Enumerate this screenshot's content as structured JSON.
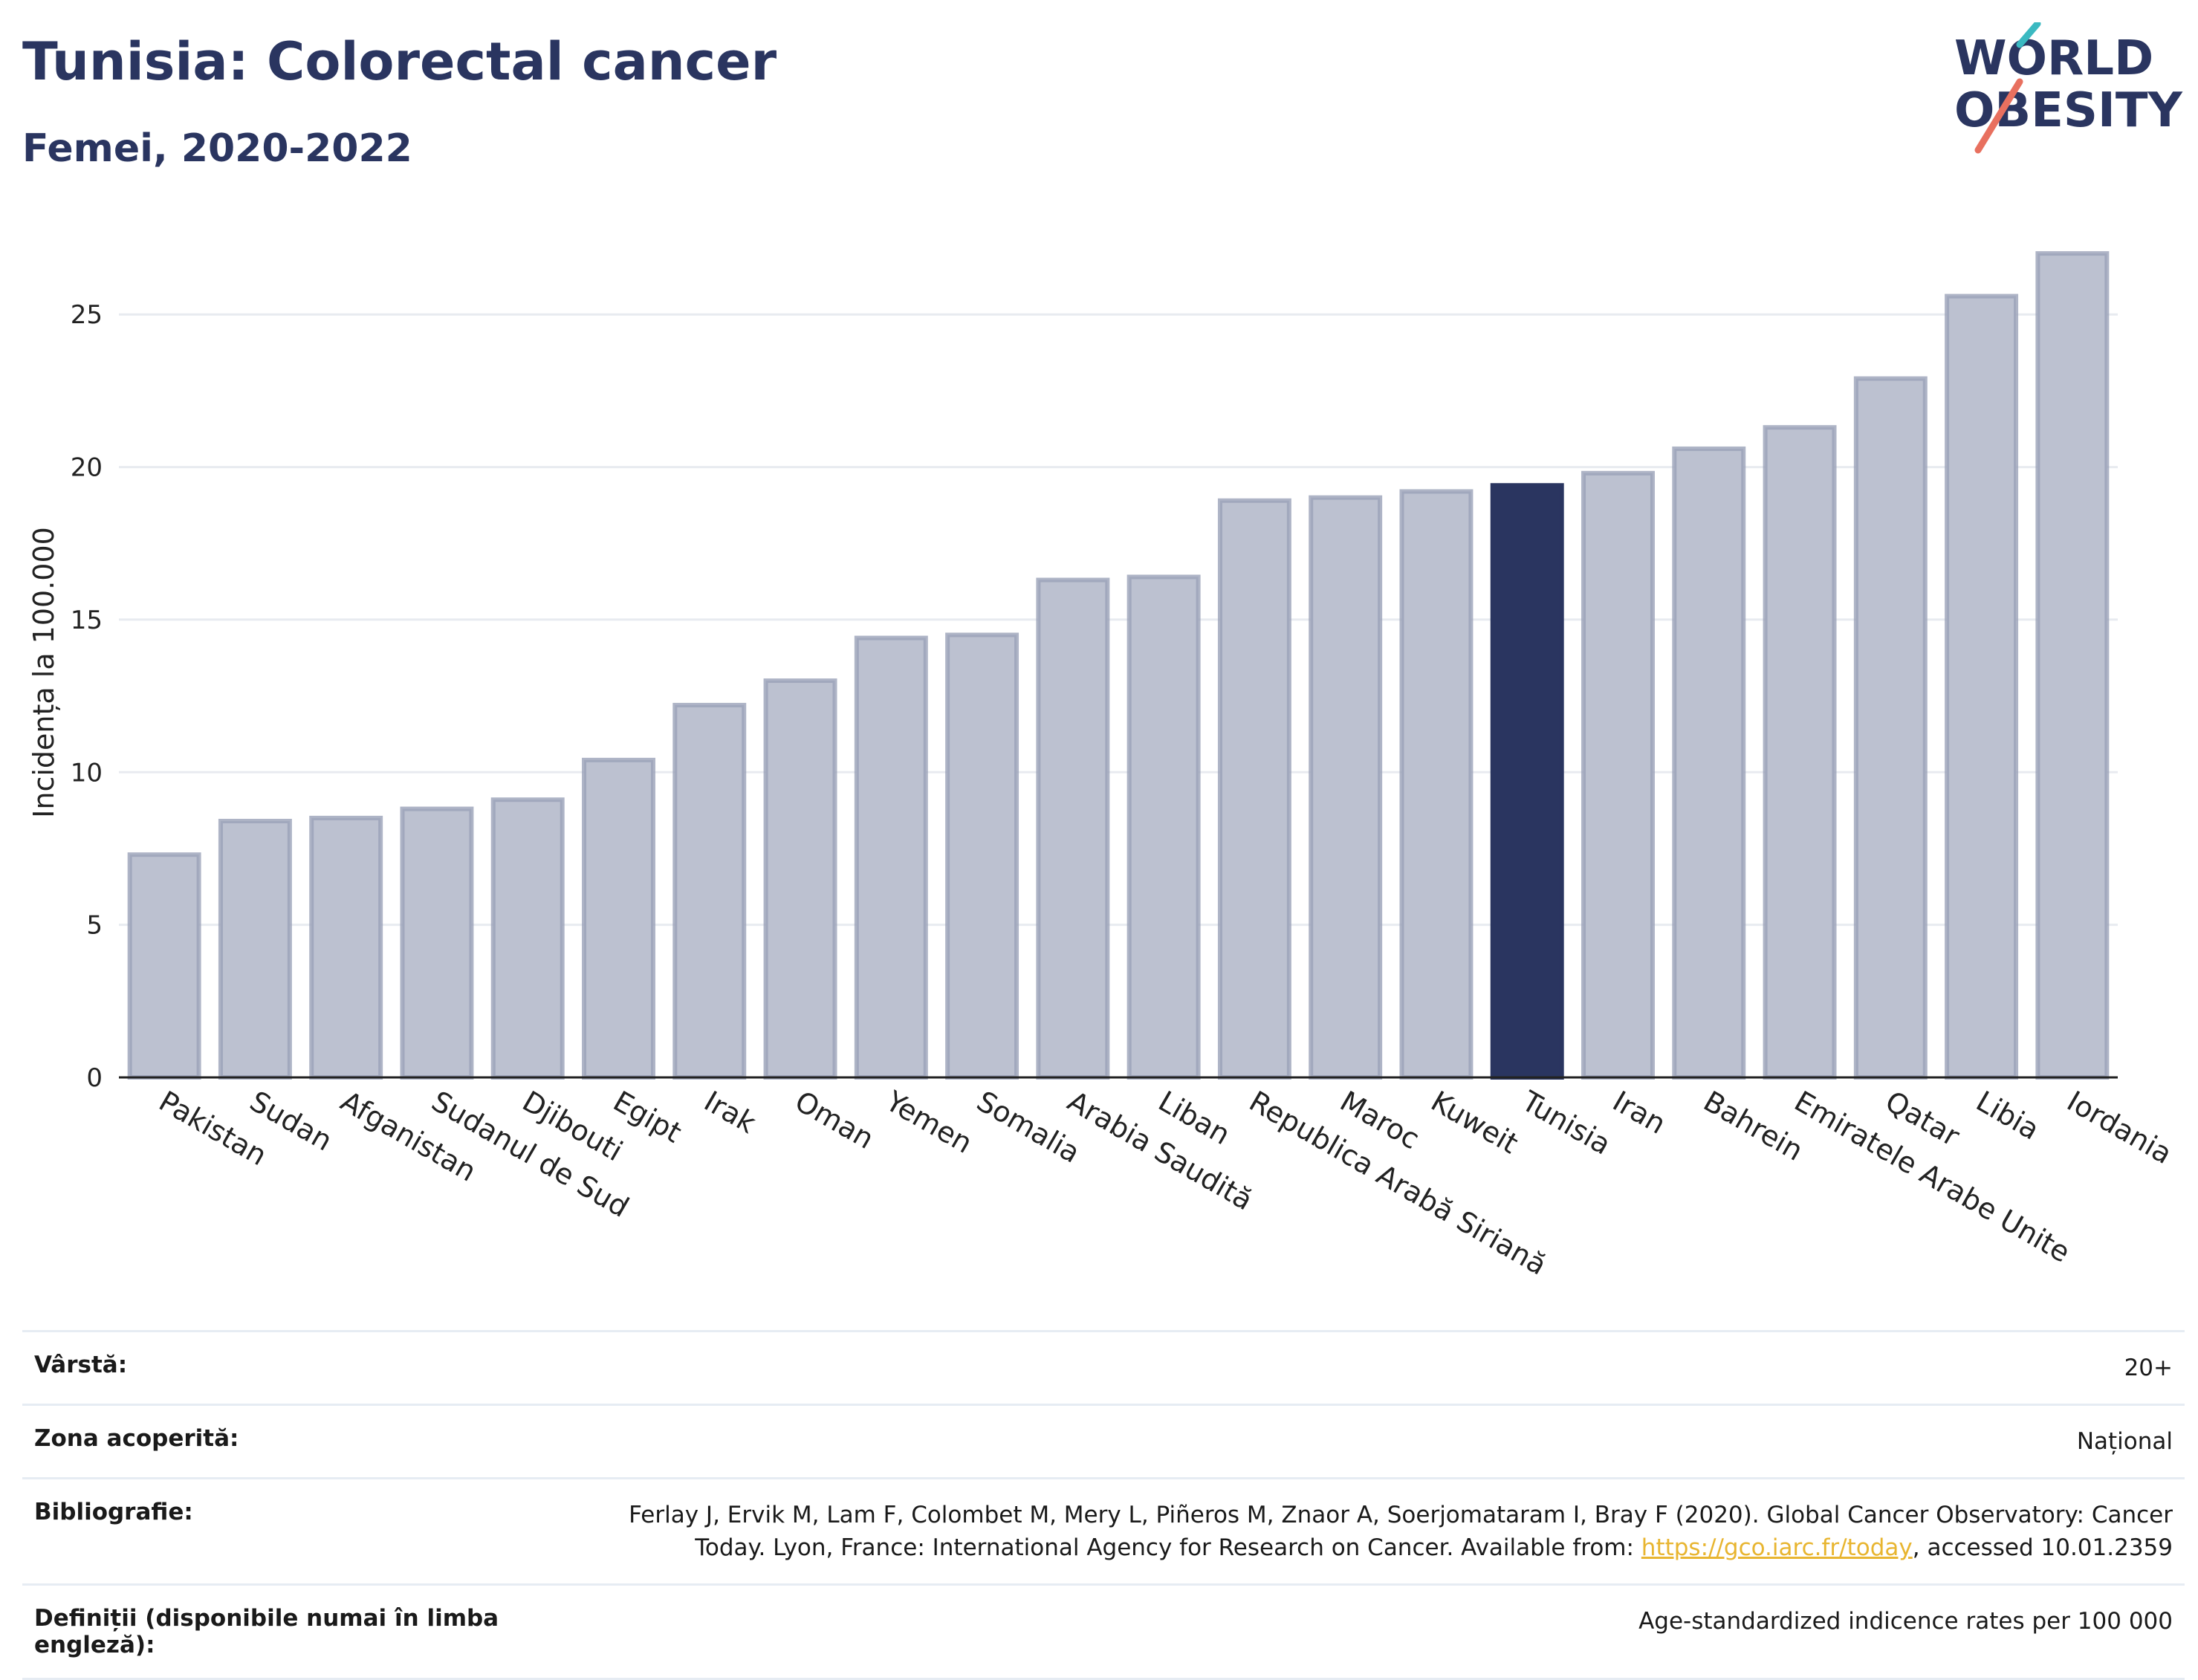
{
  "header": {
    "title": "Tunisia: Colorectal cancer",
    "subtitle": "Femei, 2020-2022"
  },
  "logo": {
    "line1": "WORLD",
    "line2": "OBESITY"
  },
  "colors": {
    "bar": "#bcc1d0",
    "bar_stroke": "#9aa1b8",
    "highlight": "#2a3560",
    "axis": "#222222",
    "grid": "#e8ebf0",
    "accent_teal": "#3bb9c1",
    "accent_coral": "#e8705f"
  },
  "chart_data": {
    "type": "bar",
    "ylabel": "Incidența la 100.000",
    "xlabel": "",
    "ylim": [
      0,
      28
    ],
    "yticks": [
      0,
      5,
      10,
      15,
      20,
      25
    ],
    "grid": true,
    "highlight": "Tunisia",
    "categories": [
      "Pakistan",
      "Sudan",
      "Afganistan",
      "Sudanul de Sud",
      "Djibouti",
      "Egipt",
      "Irak",
      "Oman",
      "Yemen",
      "Somalia",
      "Arabia Saudită",
      "Liban",
      "Republica Arabă Siriană",
      "Maroc",
      "Kuweit",
      "Tunisia",
      "Iran",
      "Bahrein",
      "Emiratele Arabe Unite",
      "Qatar",
      "Libia",
      "Iordania"
    ],
    "values": [
      7.3,
      8.4,
      8.5,
      8.8,
      9.1,
      10.4,
      12.2,
      13.0,
      14.4,
      14.5,
      16.3,
      16.4,
      18.9,
      19.0,
      19.2,
      19.4,
      19.8,
      20.6,
      21.3,
      22.9,
      25.6,
      27.0
    ]
  },
  "meta": {
    "rows": [
      {
        "key": "Vârstă:",
        "value": "20+"
      },
      {
        "key": "Zona acoperită:",
        "value": "Național"
      },
      {
        "key": "Bibliografie:",
        "value_line1": "Ferlay J, Ervik M, Lam F, Colombet M, Mery L, Piñeros M, Znaor A, Soerjomataram I, Bray F (2020). Global Cancer Observatory: Cancer",
        "value_line2_pre": "Today. Lyon, France: International Agency for Research on Cancer. Available from: ",
        "link": "https://gco.iarc.fr/today",
        "value_line2_post": ", accessed 10.01.2359"
      },
      {
        "key": "Definiții (disponibile numai în limba engleză):",
        "value": "Age-standardized indicence rates per 100 000"
      }
    ]
  }
}
